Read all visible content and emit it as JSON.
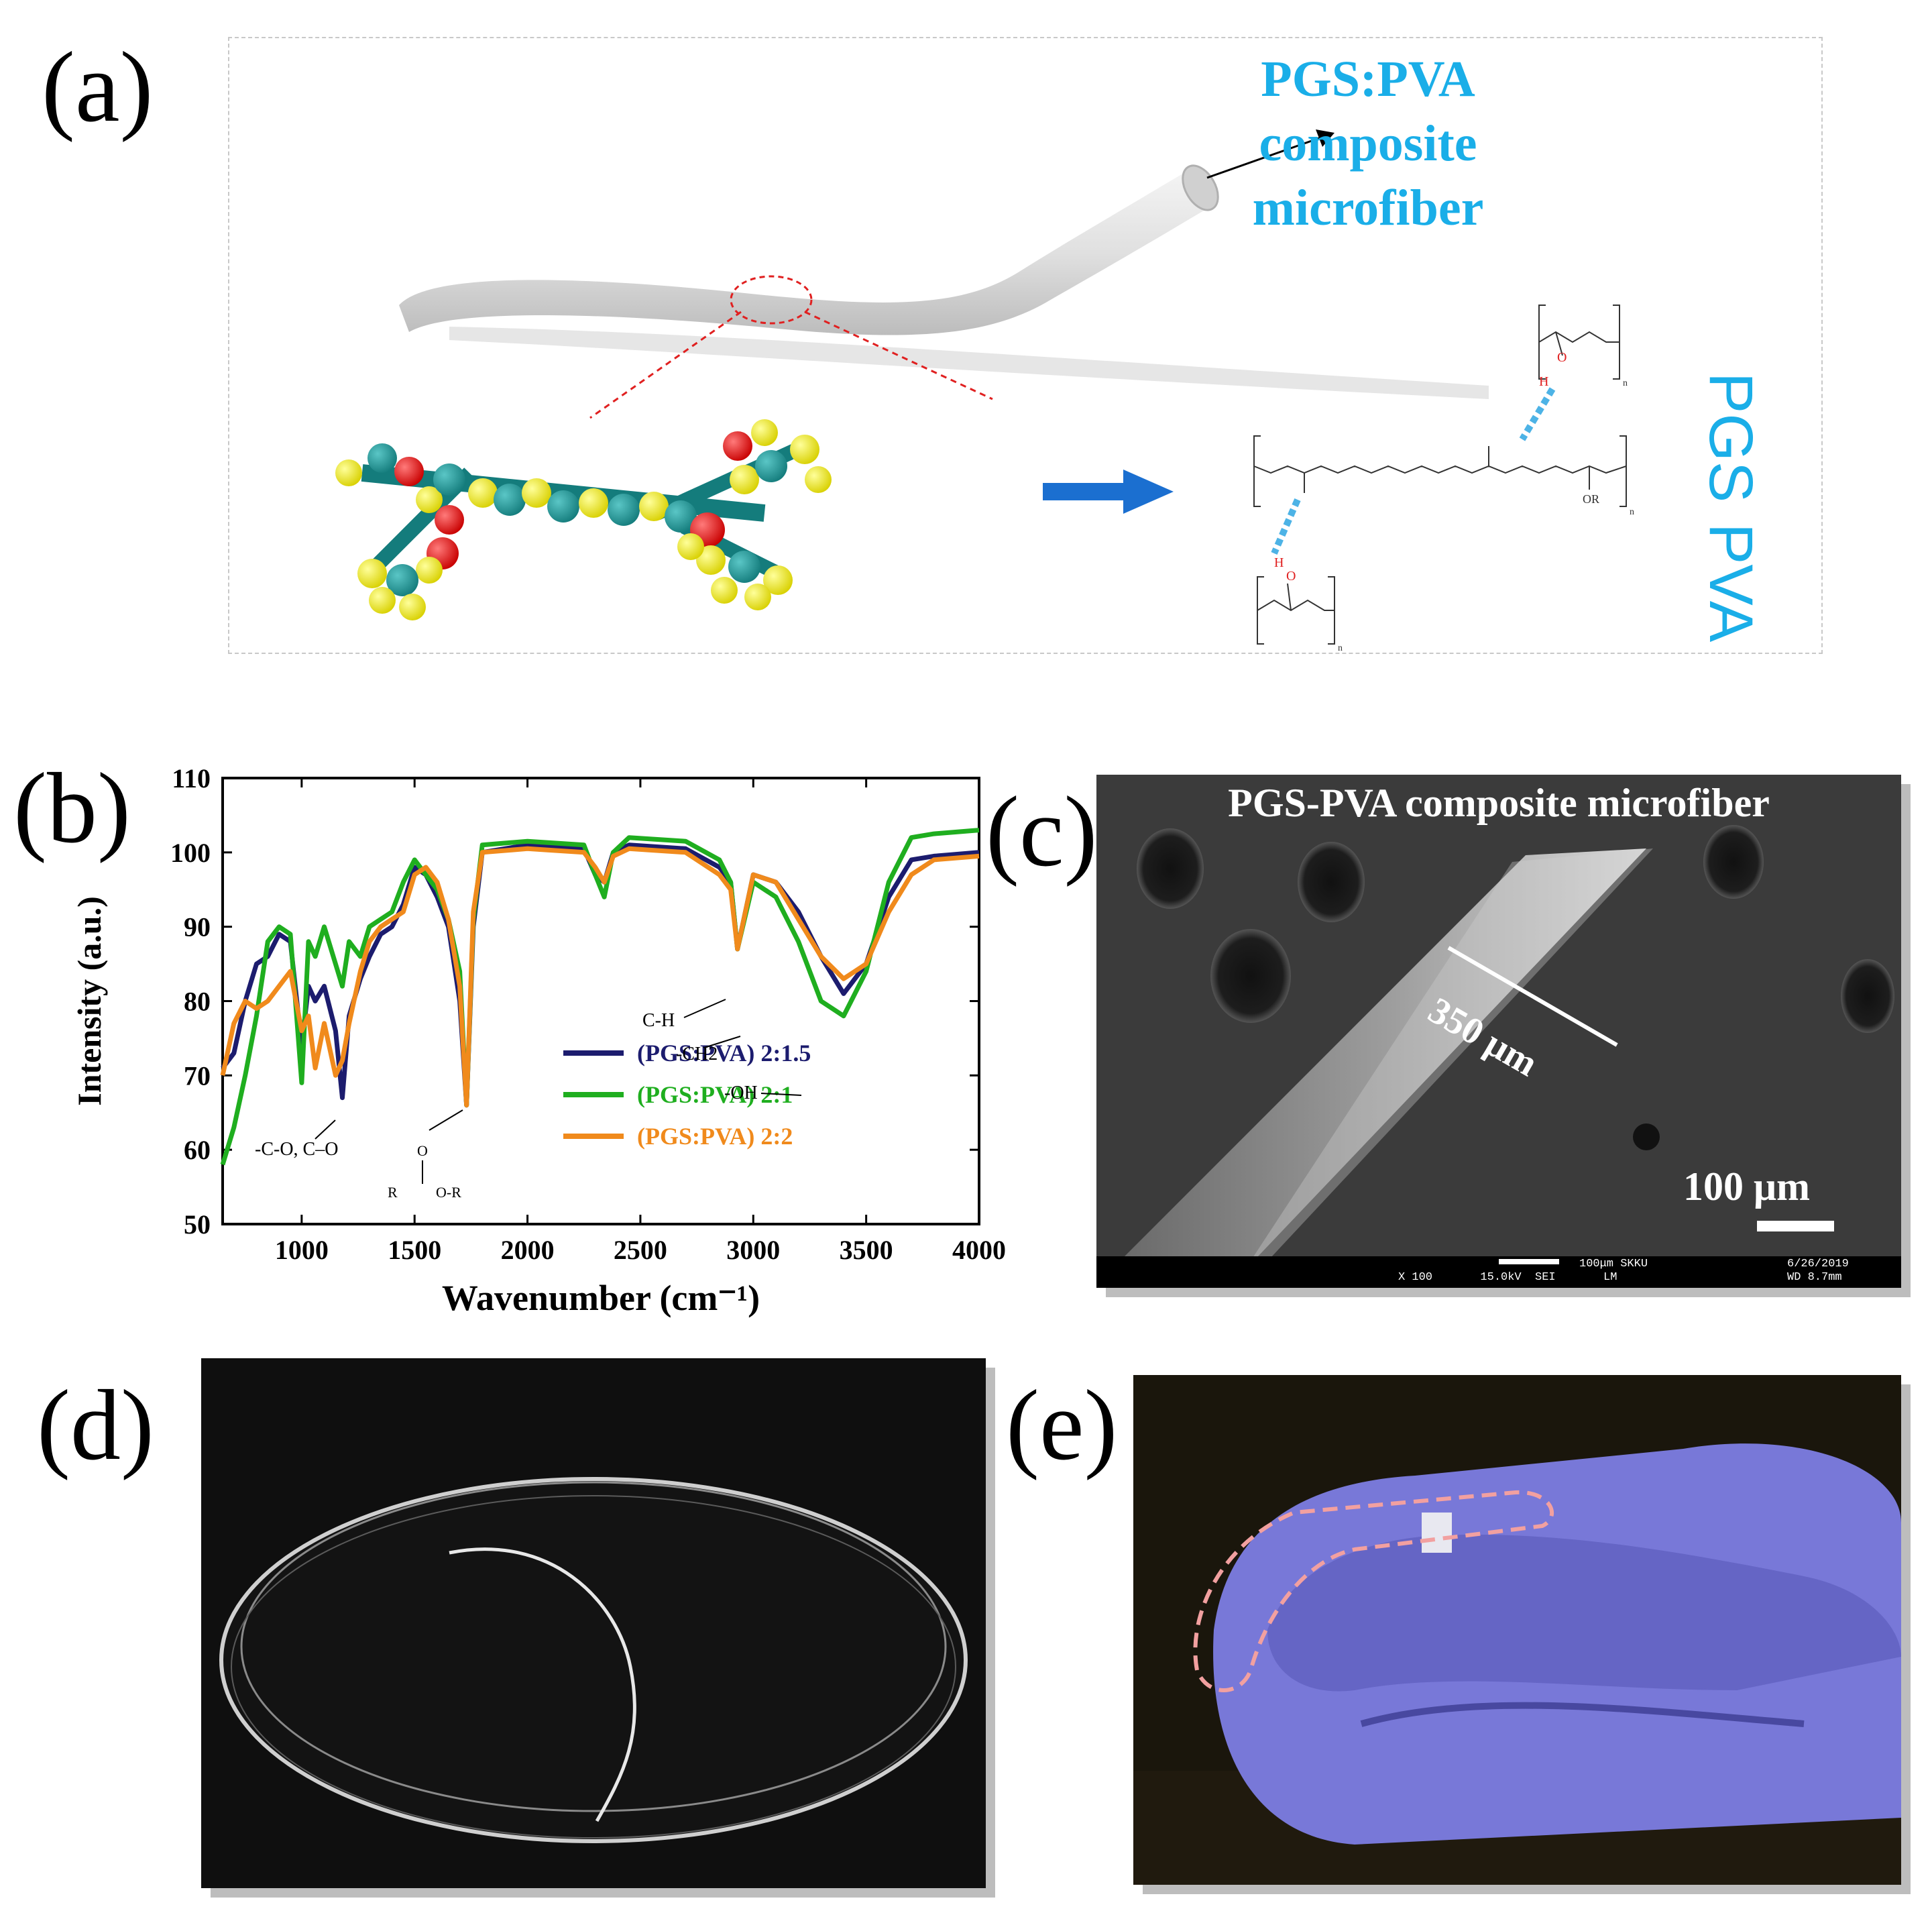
{
  "panels": {
    "a": "(a)",
    "b": "(b)",
    "c": "(c)",
    "d": "(d)",
    "e": "(e)"
  },
  "panel_a": {
    "fiber_label_lines": [
      "PGS:PVA",
      "composite",
      "microfiber"
    ],
    "pgs_label": "PGS",
    "pva_label": "PVA",
    "chem": {
      "or": "OR",
      "n": "n",
      "h": "H",
      "o": "O"
    }
  },
  "panel_c": {
    "title": "PGS-PVA composite microfiber",
    "width_label": "350 μm",
    "scale_label": "100 μm",
    "info_line1": "100μm  SKKU",
    "info_line2": "X 100       15.0kV  SEI       LM",
    "date": "6/26/2019",
    "wd": "WD 8.7mm"
  },
  "chart_data": {
    "type": "line",
    "xlabel": "Wavenumber (cm⁻¹)",
    "ylabel": "Intensity (a.u.)",
    "xlim": [
      650,
      4000
    ],
    "ylim": [
      50,
      110
    ],
    "xticks": [
      1000,
      1500,
      2000,
      2500,
      3000,
      3500,
      4000
    ],
    "yticks": [
      50,
      60,
      70,
      80,
      90,
      100,
      110
    ],
    "legend_position": "center-right",
    "annotations": [
      "C-H",
      "-CH2",
      "-OH",
      "-C-O, C–O",
      "O-R",
      "R",
      "O"
    ],
    "series": [
      {
        "name": "(PGS:PVA) 2:1.5",
        "color": "#1c1c6e",
        "x": [
          650,
          700,
          750,
          800,
          850,
          900,
          950,
          1000,
          1030,
          1060,
          1100,
          1150,
          1180,
          1210,
          1260,
          1300,
          1350,
          1400,
          1450,
          1500,
          1550,
          1600,
          1650,
          1700,
          1730,
          1760,
          1800,
          2000,
          2250,
          2300,
          2340,
          2380,
          2450,
          2700,
          2850,
          2900,
          2930,
          3000,
          3100,
          3200,
          3300,
          3400,
          3500,
          3600,
          3700,
          3800,
          4000
        ],
        "y": [
          71,
          73,
          80,
          85,
          86,
          89,
          88,
          74,
          82,
          80,
          82,
          76,
          67,
          78,
          83,
          86,
          89,
          90,
          93,
          98,
          97,
          94,
          90,
          80,
          66,
          90,
          100,
          101,
          100.5,
          97,
          96,
          100,
          101,
          100.5,
          98,
          96,
          87,
          97,
          96,
          92,
          86,
          81,
          85,
          94,
          99,
          99.5,
          100
        ]
      },
      {
        "name": "(PGS:PVA) 2:1",
        "color": "#1fae1f",
        "x": [
          650,
          700,
          750,
          800,
          850,
          900,
          950,
          1000,
          1030,
          1060,
          1100,
          1150,
          1180,
          1210,
          1260,
          1300,
          1350,
          1400,
          1450,
          1500,
          1550,
          1600,
          1650,
          1700,
          1730,
          1760,
          1800,
          2000,
          2250,
          2300,
          2340,
          2380,
          2450,
          2700,
          2850,
          2900,
          2930,
          3000,
          3100,
          3200,
          3300,
          3400,
          3500,
          3600,
          3700,
          3800,
          4000
        ],
        "y": [
          58,
          63,
          70,
          78,
          88,
          90,
          89,
          69,
          88,
          86,
          90,
          85,
          82,
          88,
          86,
          90,
          91,
          92,
          96,
          99,
          97,
          95,
          91,
          84,
          66,
          91,
          101,
          101.5,
          101,
          97,
          94,
          100,
          102,
          101.5,
          99,
          96,
          87,
          96,
          94,
          88,
          80,
          78,
          84,
          96,
          102,
          102.5,
          103
        ]
      },
      {
        "name": "(PGS:PVA) 2:2",
        "color": "#f08a1c",
        "x": [
          650,
          700,
          750,
          800,
          850,
          900,
          950,
          1000,
          1030,
          1060,
          1100,
          1150,
          1180,
          1210,
          1260,
          1300,
          1350,
          1400,
          1450,
          1500,
          1550,
          1600,
          1650,
          1700,
          1730,
          1760,
          1800,
          2000,
          2250,
          2300,
          2340,
          2380,
          2450,
          2700,
          2850,
          2900,
          2930,
          3000,
          3100,
          3200,
          3300,
          3400,
          3500,
          3600,
          3700,
          3800,
          4000
        ],
        "y": [
          70,
          77,
          80,
          79,
          80,
          82,
          84,
          76,
          78,
          71,
          77,
          70,
          72,
          77,
          84,
          88,
          90,
          91,
          92,
          97,
          98,
          96,
          91,
          82,
          66,
          92,
          100,
          100.5,
          100,
          98,
          96,
          99.5,
          100.5,
          100,
          97,
          95,
          87,
          97,
          96,
          91,
          86,
          83,
          85,
          92,
          97,
          99,
          99.5
        ]
      }
    ]
  }
}
